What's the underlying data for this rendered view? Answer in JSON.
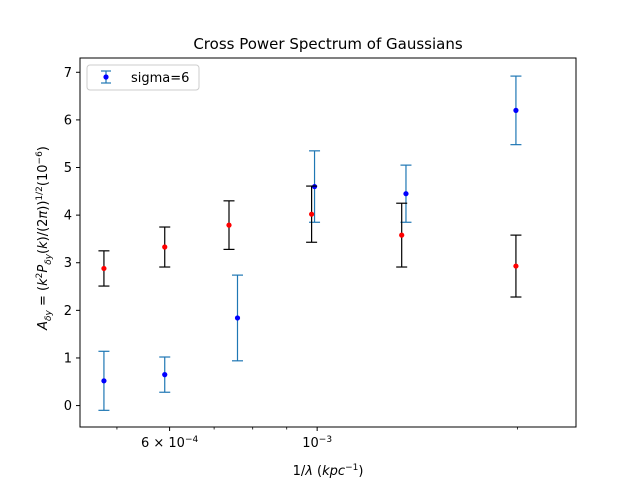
{
  "chart_data": {
    "type": "scatter",
    "title": "Cross Power Spectrum of Gaussians",
    "xlabel": "1/λ (kpc⁻¹)",
    "ylabel": "A_δy = (k²P_δy(k)/(2π))^(1/2) (10⁻⁶)",
    "xscale": "log",
    "xlim": [
      0.00044,
      0.00245
    ],
    "ylim": [
      -0.45,
      7.3
    ],
    "grid": false,
    "legend": {
      "location": "top-left",
      "entries": [
        "sigma=6"
      ]
    },
    "x_ticks_major": [
      {
        "value": 0.0006,
        "label": "6 × 10⁻⁴"
      },
      {
        "value": 0.001,
        "label": "10⁻³"
      }
    ],
    "y_ticks": [
      "0",
      "1",
      "2",
      "3",
      "4",
      "5",
      "6",
      "7"
    ],
    "series": [
      {
        "name": "sigma=6",
        "marker_color": "#0000ff",
        "errorbar_color": "#1f77b4",
        "points": [
          {
            "x": 0.000478,
            "y": 0.52,
            "yerr": 0.62
          },
          {
            "x": 0.00059,
            "y": 0.65,
            "yerr": 0.37
          },
          {
            "x": 0.000759,
            "y": 1.84,
            "yerr": 0.9
          },
          {
            "x": 0.000991,
            "y": 4.6,
            "yerr": 0.75
          },
          {
            "x": 0.00136,
            "y": 4.45,
            "yerr": 0.6
          },
          {
            "x": 0.00199,
            "y": 6.2,
            "yerr": 0.72
          }
        ]
      },
      {
        "marker_color": "#ff0000",
        "errorbar_color": "#000000",
        "points": [
          {
            "x": 0.000478,
            "y": 2.88,
            "yerr": 0.37
          },
          {
            "x": 0.00059,
            "y": 3.33,
            "yerr": 0.42
          },
          {
            "x": 0.000737,
            "y": 3.79,
            "yerr": 0.51
          },
          {
            "x": 0.000981,
            "y": 4.02,
            "yerr": 0.59
          },
          {
            "x": 0.00134,
            "y": 3.58,
            "yerr": 0.67
          },
          {
            "x": 0.00199,
            "y": 2.93,
            "yerr": 0.65
          }
        ]
      }
    ]
  }
}
